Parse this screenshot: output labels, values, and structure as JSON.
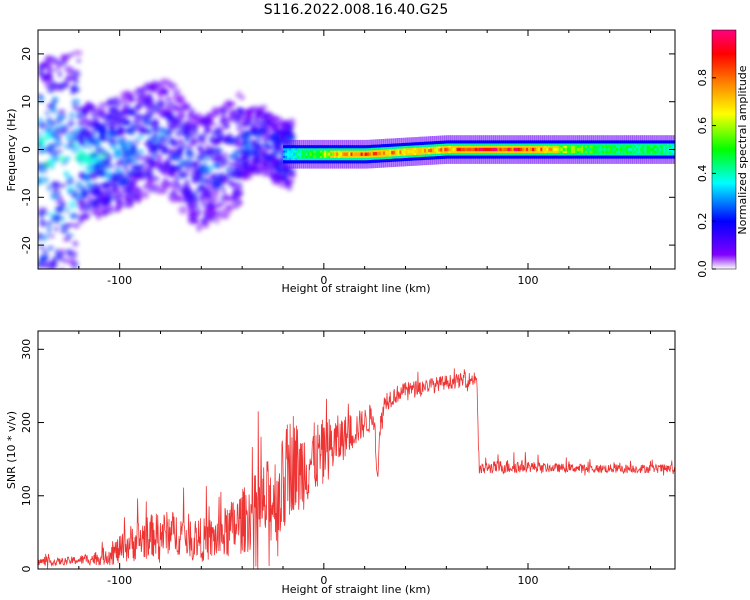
{
  "figure": {
    "title": "S116.2022.008.16.40.G25"
  },
  "chart_data": [
    {
      "type": "heatmap",
      "xlabel": "Height of straight line (km)",
      "ylabel": "Frequency (Hz)",
      "xlim": [
        -140,
        172
      ],
      "ylim": [
        -25,
        25
      ],
      "xticks": [
        -100,
        0,
        100
      ],
      "yticks": [
        -20,
        -10,
        0,
        10,
        20
      ],
      "colorbar": {
        "label": "Normalized spectral amplitude",
        "range": [
          0.0,
          1.0
        ],
        "ticks": [
          0.0,
          0.2,
          0.4,
          0.6,
          0.8
        ],
        "colormap": [
          "#ffffff",
          "#7f00ff",
          "#0000ff",
          "#00ffff",
          "#00ff00",
          "#ffff00",
          "#ff8000",
          "#ff0000",
          "#ff0080"
        ]
      },
      "ridge_points": [
        {
          "x": -120,
          "y": -3,
          "amp": 0.4
        },
        {
          "x": -100,
          "y": -1,
          "amp": 0.35
        },
        {
          "x": -88,
          "y": 2,
          "amp": 0.3
        },
        {
          "x": -78,
          "y": 3,
          "amp": 0.25
        },
        {
          "x": -60,
          "y": -5,
          "amp": 0.3
        },
        {
          "x": -48,
          "y": -2,
          "amp": 0.25
        },
        {
          "x": -38,
          "y": 1,
          "amp": 0.3
        },
        {
          "x": -30,
          "y": 2,
          "amp": 0.25
        },
        {
          "x": -20,
          "y": -1,
          "amp": 0.3
        },
        {
          "x": 0,
          "y": -1,
          "amp": 0.6
        },
        {
          "x": 20,
          "y": -1,
          "amp": 0.85
        },
        {
          "x": 40,
          "y": -0.5,
          "amp": 0.7
        },
        {
          "x": 60,
          "y": 0,
          "amp": 0.75
        },
        {
          "x": 78,
          "y": 0,
          "amp": 0.9
        },
        {
          "x": 100,
          "y": 0,
          "amp": 0.85
        },
        {
          "x": 120,
          "y": 0,
          "amp": 0.55
        },
        {
          "x": 140,
          "y": 0,
          "amp": 0.45
        },
        {
          "x": 160,
          "y": 0,
          "amp": 0.45
        },
        {
          "x": 172,
          "y": 0,
          "amp": 0.4
        }
      ]
    },
    {
      "type": "line",
      "xlabel": "Height of straight line (km)",
      "ylabel": "SNR (10 * v/v)",
      "xlim": [
        -140,
        172
      ],
      "ylim": [
        0,
        325
      ],
      "xticks": [
        -100,
        0,
        100
      ],
      "yticks": [
        0,
        100,
        200,
        300
      ],
      "grid": false,
      "series": [
        {
          "color": "#ee3333",
          "x": [
            -140,
            -130,
            -120,
            -110,
            -100,
            -95,
            -90,
            -85,
            -80,
            -75,
            -70,
            -65,
            -60,
            -55,
            -50,
            -45,
            -40,
            -35,
            -30,
            -25,
            -20,
            -18,
            -15,
            -12,
            -10,
            -5,
            0,
            5,
            10,
            15,
            20,
            25,
            26,
            28,
            30,
            40,
            50,
            60,
            70,
            75,
            76,
            80,
            90,
            100,
            110,
            120,
            130,
            140,
            150,
            160,
            172
          ],
          "y": [
            10,
            10,
            12,
            15,
            25,
            35,
            40,
            45,
            48,
            50,
            48,
            45,
            40,
            40,
            45,
            55,
            65,
            75,
            85,
            95,
            110,
            130,
            150,
            130,
            140,
            150,
            160,
            170,
            180,
            190,
            200,
            210,
            125,
            200,
            230,
            245,
            250,
            255,
            258,
            260,
            135,
            138,
            140,
            140,
            138,
            138,
            137,
            137,
            137,
            137,
            137
          ],
          "spread": [
            5,
            5,
            6,
            10,
            20,
            25,
            30,
            30,
            30,
            30,
            30,
            30,
            30,
            30,
            35,
            40,
            45,
            50,
            60,
            60,
            70,
            70,
            70,
            60,
            60,
            50,
            45,
            40,
            30,
            25,
            20,
            20,
            20,
            20,
            15,
            10,
            10,
            10,
            10,
            10,
            8,
            8,
            10,
            8,
            6,
            6,
            6,
            6,
            6,
            6,
            6
          ]
        }
      ]
    }
  ]
}
